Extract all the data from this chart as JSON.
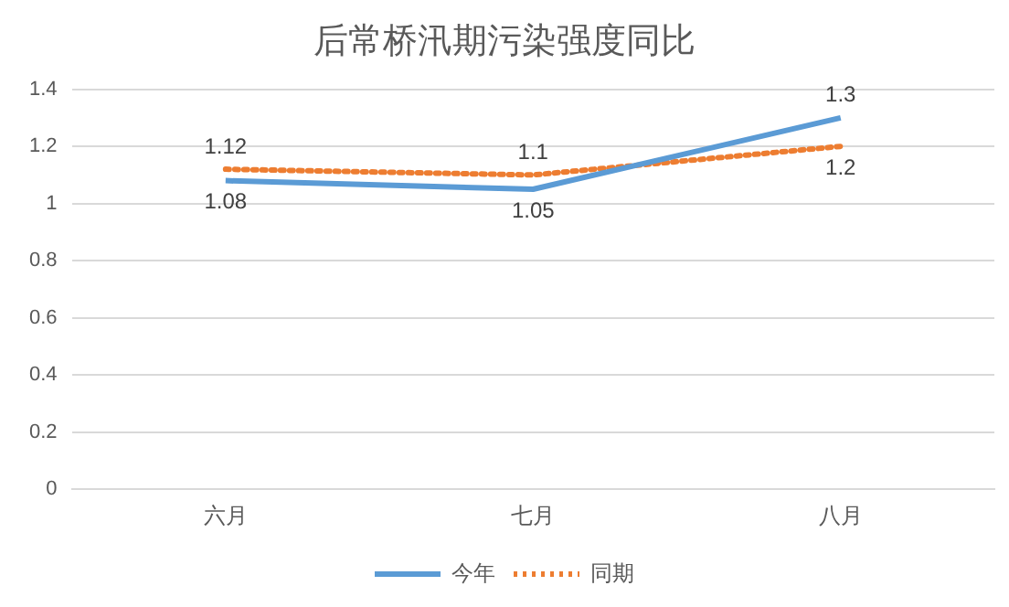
{
  "chart_data": {
    "type": "line",
    "title": "后常桥汛期污染强度同比",
    "categories": [
      "六月",
      "七月",
      "八月"
    ],
    "series": [
      {
        "name": "今年",
        "color": "#5b9bd5",
        "values": [
          1.08,
          1.05,
          1.3
        ],
        "line_style": "solid"
      },
      {
        "name": "同期",
        "color": "#ed7d31",
        "values": [
          1.12,
          1.1,
          1.2
        ],
        "line_style": "dotted"
      }
    ],
    "ylim": [
      0,
      1.4
    ],
    "yticks": [
      0,
      0.2,
      0.4,
      0.6,
      0.8,
      1,
      1.2,
      1.4
    ],
    "grid": "y",
    "legend": "bottom",
    "marker": "none",
    "data_labels": true
  }
}
